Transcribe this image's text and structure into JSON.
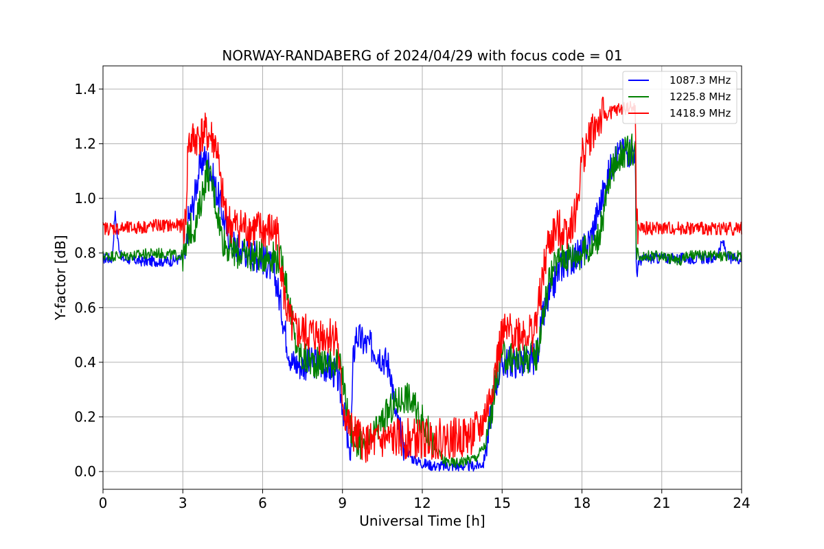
{
  "chart_data": {
    "type": "line",
    "title": "NORWAY-RANDABERG of 2024/04/29 with focus code = 01",
    "xlabel": "Universal Time [h]",
    "ylabel": "Y-factor [dB]",
    "xlim": [
      0,
      24
    ],
    "ylim": [
      -0.065,
      1.485
    ],
    "xticks": [
      0,
      3,
      6,
      9,
      12,
      15,
      18,
      21,
      24
    ],
    "xtick_labels": [
      "0",
      "3",
      "6",
      "9",
      "12",
      "15",
      "18",
      "21",
      "24"
    ],
    "yticks": [
      0.0,
      0.2,
      0.4,
      0.6,
      0.8,
      1.0,
      1.2,
      1.4
    ],
    "ytick_labels": [
      "0.0",
      "0.2",
      "0.4",
      "0.6",
      "0.8",
      "1.0",
      "1.2",
      "1.4"
    ],
    "grid": true,
    "legend_position": "top-right",
    "series": [
      {
        "name": "1087.3 MHz",
        "color": "#0000ff",
        "points": [
          [
            0,
            0.78
          ],
          [
            0.35,
            0.78
          ],
          [
            0.45,
            0.95
          ],
          [
            0.55,
            0.85
          ],
          [
            0.7,
            0.78
          ],
          [
            1.5,
            0.77
          ],
          [
            2.5,
            0.77
          ],
          [
            3.0,
            0.78
          ],
          [
            3.1,
            0.78
          ],
          [
            3.2,
            0.92
          ],
          [
            3.4,
            0.98
          ],
          [
            3.6,
            1.1
          ],
          [
            3.8,
            1.15
          ],
          [
            4.0,
            1.12
          ],
          [
            4.2,
            1.05
          ],
          [
            4.4,
            0.98
          ],
          [
            4.6,
            0.9
          ],
          [
            4.8,
            0.85
          ],
          [
            5.0,
            0.82
          ],
          [
            5.5,
            0.8
          ],
          [
            6.0,
            0.78
          ],
          [
            6.3,
            0.75
          ],
          [
            6.5,
            0.7
          ],
          [
            6.7,
            0.6
          ],
          [
            6.9,
            0.48
          ],
          [
            7.1,
            0.4
          ],
          [
            7.5,
            0.39
          ],
          [
            8.0,
            0.4
          ],
          [
            8.5,
            0.38
          ],
          [
            8.8,
            0.35
          ],
          [
            9.0,
            0.25
          ],
          [
            9.1,
            0.18
          ],
          [
            9.2,
            0.1
          ],
          [
            9.3,
            0.05
          ],
          [
            9.4,
            0.4
          ],
          [
            9.5,
            0.5
          ],
          [
            9.8,
            0.47
          ],
          [
            10.2,
            0.45
          ],
          [
            10.5,
            0.42
          ],
          [
            10.8,
            0.38
          ],
          [
            11.0,
            0.2
          ],
          [
            11.3,
            0.1
          ],
          [
            11.6,
            0.05
          ],
          [
            12.0,
            0.03
          ],
          [
            12.5,
            0.02
          ],
          [
            13.0,
            0.02
          ],
          [
            13.5,
            0.02
          ],
          [
            14.0,
            0.02
          ],
          [
            14.3,
            0.03
          ],
          [
            14.5,
            0.15
          ],
          [
            14.7,
            0.3
          ],
          [
            15.0,
            0.4
          ],
          [
            15.5,
            0.4
          ],
          [
            16.0,
            0.4
          ],
          [
            16.3,
            0.42
          ],
          [
            16.5,
            0.55
          ],
          [
            16.8,
            0.65
          ],
          [
            17.2,
            0.75
          ],
          [
            17.6,
            0.78
          ],
          [
            18.0,
            0.8
          ],
          [
            18.3,
            0.85
          ],
          [
            18.6,
            0.95
          ],
          [
            18.9,
            1.05
          ],
          [
            19.2,
            1.15
          ],
          [
            19.6,
            1.17
          ],
          [
            20.0,
            1.18
          ],
          [
            20.05,
            0.65
          ],
          [
            20.1,
            0.77
          ],
          [
            20.5,
            0.78
          ],
          [
            21.0,
            0.78
          ],
          [
            22.0,
            0.78
          ],
          [
            23.0,
            0.78
          ],
          [
            23.3,
            0.84
          ],
          [
            23.5,
            0.78
          ],
          [
            24.0,
            0.78
          ]
        ],
        "noise": 0.02
      },
      {
        "name": "1225.8 MHz",
        "color": "#008000",
        "points": [
          [
            0,
            0.79
          ],
          [
            1.0,
            0.79
          ],
          [
            2.0,
            0.8
          ],
          [
            3.0,
            0.79
          ],
          [
            3.1,
            0.79
          ],
          [
            3.2,
            0.88
          ],
          [
            3.5,
            0.9
          ],
          [
            3.7,
            1.0
          ],
          [
            3.9,
            1.1
          ],
          [
            4.1,
            1.05
          ],
          [
            4.3,
            0.95
          ],
          [
            4.5,
            0.85
          ],
          [
            4.7,
            0.82
          ],
          [
            5.0,
            0.8
          ],
          [
            5.5,
            0.79
          ],
          [
            6.0,
            0.79
          ],
          [
            6.3,
            0.79
          ],
          [
            6.6,
            0.78
          ],
          [
            6.8,
            0.75
          ],
          [
            7.0,
            0.62
          ],
          [
            7.2,
            0.48
          ],
          [
            7.5,
            0.41
          ],
          [
            8.0,
            0.4
          ],
          [
            8.5,
            0.4
          ],
          [
            8.8,
            0.41
          ],
          [
            9.0,
            0.35
          ],
          [
            9.2,
            0.2
          ],
          [
            9.4,
            0.12
          ],
          [
            9.7,
            0.1
          ],
          [
            10.0,
            0.1
          ],
          [
            10.3,
            0.15
          ],
          [
            10.6,
            0.2
          ],
          [
            11.0,
            0.25
          ],
          [
            11.4,
            0.28
          ],
          [
            11.8,
            0.22
          ],
          [
            12.2,
            0.15
          ],
          [
            12.5,
            0.08
          ],
          [
            12.8,
            0.04
          ],
          [
            13.2,
            0.03
          ],
          [
            13.6,
            0.04
          ],
          [
            14.0,
            0.05
          ],
          [
            14.4,
            0.1
          ],
          [
            14.6,
            0.22
          ],
          [
            14.8,
            0.35
          ],
          [
            15.0,
            0.42
          ],
          [
            15.5,
            0.41
          ],
          [
            16.0,
            0.42
          ],
          [
            16.3,
            0.43
          ],
          [
            16.5,
            0.55
          ],
          [
            16.8,
            0.72
          ],
          [
            17.2,
            0.79
          ],
          [
            17.6,
            0.79
          ],
          [
            18.0,
            0.8
          ],
          [
            18.4,
            0.82
          ],
          [
            18.7,
            0.88
          ],
          [
            19.0,
            1.05
          ],
          [
            19.3,
            1.15
          ],
          [
            19.6,
            1.17
          ],
          [
            20.0,
            1.18
          ],
          [
            20.05,
            0.8
          ],
          [
            20.1,
            0.79
          ],
          [
            20.5,
            0.79
          ],
          [
            21.0,
            0.79
          ],
          [
            21.6,
            0.77
          ],
          [
            22.0,
            0.79
          ],
          [
            23.0,
            0.79
          ],
          [
            24.0,
            0.79
          ]
        ],
        "noise": 0.02
      },
      {
        "name": "1418.9 MHz",
        "color": "#ff0000",
        "points": [
          [
            0,
            0.89
          ],
          [
            1.0,
            0.89
          ],
          [
            2.0,
            0.9
          ],
          [
            3.0,
            0.9
          ],
          [
            3.1,
            0.9
          ],
          [
            3.2,
            1.2
          ],
          [
            3.5,
            1.22
          ],
          [
            3.8,
            1.24
          ],
          [
            4.1,
            1.22
          ],
          [
            4.3,
            1.18
          ],
          [
            4.4,
            1.05
          ],
          [
            4.6,
            0.95
          ],
          [
            4.8,
            0.9
          ],
          [
            5.5,
            0.89
          ],
          [
            6.0,
            0.88
          ],
          [
            6.5,
            0.88
          ],
          [
            6.6,
            0.85
          ],
          [
            6.8,
            0.65
          ],
          [
            7.0,
            0.55
          ],
          [
            7.2,
            0.51
          ],
          [
            8.0,
            0.5
          ],
          [
            8.8,
            0.5
          ],
          [
            8.9,
            0.35
          ],
          [
            9.1,
            0.2
          ],
          [
            9.3,
            0.15
          ],
          [
            9.6,
            0.12
          ],
          [
            10.0,
            0.1
          ],
          [
            10.5,
            0.11
          ],
          [
            11.0,
            0.12
          ],
          [
            12.0,
            0.12
          ],
          [
            13.0,
            0.12
          ],
          [
            13.8,
            0.13
          ],
          [
            14.2,
            0.16
          ],
          [
            14.5,
            0.25
          ],
          [
            14.7,
            0.35
          ],
          [
            14.9,
            0.45
          ],
          [
            15.0,
            0.5
          ],
          [
            15.5,
            0.51
          ],
          [
            16.2,
            0.51
          ],
          [
            16.4,
            0.62
          ],
          [
            16.7,
            0.82
          ],
          [
            17.0,
            0.88
          ],
          [
            17.5,
            0.89
          ],
          [
            17.8,
            0.95
          ],
          [
            18.0,
            1.15
          ],
          [
            18.4,
            1.25
          ],
          [
            18.8,
            1.3
          ],
          [
            19.2,
            1.32
          ],
          [
            19.6,
            1.33
          ],
          [
            20.0,
            1.33
          ],
          [
            20.05,
            0.89
          ],
          [
            20.1,
            0.89
          ],
          [
            21.0,
            0.89
          ],
          [
            22.0,
            0.89
          ],
          [
            23.0,
            0.89
          ],
          [
            24.0,
            0.89
          ]
        ],
        "noise": 0.025
      }
    ]
  }
}
